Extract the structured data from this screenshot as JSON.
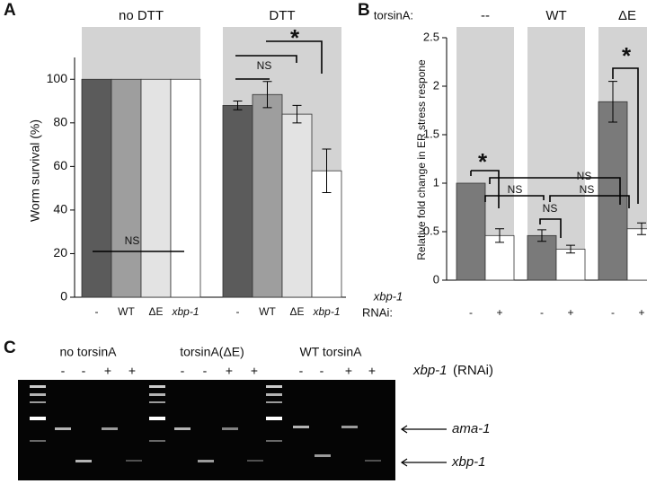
{
  "chart_data": [
    {
      "type": "bar",
      "panel": "A",
      "ylabel": "Worm survival (%)",
      "categories": [
        "-",
        "WT",
        "ΔE",
        "xbp-1"
      ],
      "colors": [
        "#5b5b5b",
        "#9e9e9e",
        "#e3e3e3",
        "#ffffff"
      ],
      "groups": [
        {
          "name": "no DTT",
          "values": [
            100,
            100,
            100,
            100
          ]
        },
        {
          "name": "DTT",
          "values": [
            88,
            93,
            84,
            58
          ],
          "errors": [
            2,
            6,
            4,
            10
          ]
        }
      ],
      "ylim": [
        0,
        110
      ],
      "yticks": [
        0,
        20,
        40,
        60,
        80,
        100
      ],
      "annotations": [
        "NS",
        "NS",
        "*"
      ]
    },
    {
      "type": "bar",
      "panel": "B",
      "ylabel": "Relative fold change in ER stress respone",
      "group_header": "torsinA:",
      "row_labels": [
        "xbp-1",
        "RNAi:"
      ],
      "categories": [
        "-",
        "+"
      ],
      "colors": [
        "#7a7a7a",
        "#ffffff"
      ],
      "groups": [
        {
          "name": "--",
          "values": [
            1,
            0.46
          ],
          "errors": [
            null,
            0.07
          ]
        },
        {
          "name": "WT",
          "values": [
            0.46,
            0.32
          ],
          "errors": [
            0.06,
            0.04
          ]
        },
        {
          "name": "ΔE",
          "values": [
            1.84,
            0.53
          ],
          "errors": [
            0.21,
            0.06
          ]
        }
      ],
      "ylim": [
        0,
        2.5
      ],
      "yticks": [
        0,
        0.5,
        1,
        1.5,
        2,
        2.5
      ],
      "annotations": [
        "*",
        "NS",
        "NS",
        "NS",
        "NS",
        "*"
      ]
    }
  ],
  "gel": {
    "panel": "C",
    "groups": [
      "no torsinA",
      "torsinA(ΔE)",
      "WT torsinA"
    ],
    "lane_labels": [
      "-",
      "-",
      "+",
      "+"
    ],
    "condition": [
      "xbp-1",
      "(RNAi)"
    ],
    "bands": [
      "ama-1",
      "xbp-1"
    ]
  }
}
